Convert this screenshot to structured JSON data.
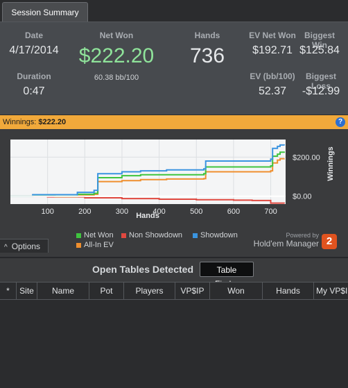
{
  "tab": {
    "label": "Session Summary"
  },
  "summary": {
    "date_label": "Date",
    "date_value": "4/17/2014",
    "net_won_label": "Net Won",
    "net_won_value": "$222.20",
    "net_won_sub": "60.38 bb/100",
    "hands_label": "Hands",
    "hands_value": "736",
    "ev_net_won_label": "EV Net Won",
    "ev_net_won_value": "$192.71",
    "biggest_win_label": "Biggest Win",
    "biggest_win_value": "$125.84",
    "duration_label": "Duration",
    "duration_value": "0:47",
    "ev_bb_label": "EV (bb/100)",
    "ev_bb_value": "52.37",
    "biggest_loss_label": "Biggest Loss",
    "biggest_loss_value": "-$12.99"
  },
  "winnings_bar": {
    "label": "Winnings:",
    "value": "$222.20",
    "help": "?"
  },
  "chart_data": {
    "type": "line",
    "xlabel": "Hands",
    "ylabel": "Winnings",
    "xlim": [
      0,
      740
    ],
    "ylim": [
      -40,
      290
    ],
    "x_ticks": [
      100,
      200,
      300,
      400,
      500,
      600,
      700
    ],
    "y_ticks": [
      {
        "value": 200,
        "label": "$200.00"
      },
      {
        "value": 0,
        "label": "$0.00"
      }
    ],
    "series": [
      {
        "name": "Net Won",
        "color": "#3fc43f",
        "x": [
          0,
          60,
          120,
          180,
          225,
          235,
          300,
          350,
          420,
          520,
          525,
          600,
          700,
          705,
          718,
          725,
          736
        ],
        "y": [
          0,
          5,
          0,
          10,
          15,
          95,
          105,
          110,
          110,
          115,
          150,
          150,
          155,
          205,
          215,
          225,
          222
        ]
      },
      {
        "name": "Non Showdown",
        "color": "#e0483f",
        "x": [
          0,
          100,
          200,
          300,
          400,
          500,
          600,
          650,
          700,
          736
        ],
        "y": [
          0,
          -3,
          -8,
          -12,
          -15,
          -18,
          -20,
          -22,
          -35,
          -38
        ]
      },
      {
        "name": "Showdown",
        "color": "#3a94e0",
        "x": [
          0,
          60,
          120,
          180,
          225,
          235,
          300,
          350,
          420,
          520,
          525,
          600,
          700,
          705,
          718,
          725,
          736
        ],
        "y": [
          0,
          8,
          8,
          20,
          30,
          115,
          125,
          130,
          135,
          140,
          180,
          180,
          190,
          245,
          255,
          262,
          260
        ]
      },
      {
        "name": "All-In EV",
        "color": "#ef8f2e",
        "x": [
          0,
          60,
          120,
          180,
          225,
          235,
          300,
          350,
          420,
          520,
          525,
          600,
          700,
          705,
          718,
          725,
          736
        ],
        "y": [
          0,
          3,
          -2,
          5,
          10,
          75,
          80,
          85,
          88,
          90,
          125,
          125,
          130,
          170,
          185,
          192,
          193
        ]
      }
    ],
    "baseline": {
      "y": 0,
      "color": "#ffffff"
    }
  },
  "options": {
    "label": "Options",
    "arrow": "^"
  },
  "branding": {
    "powered_by": "Powered by",
    "name": "Hold'em Manager",
    "logo_digit": "2",
    "logo_color": "#e0531f"
  },
  "open_tables": {
    "title": "Open Tables Detected",
    "finder_button": "Table Finder",
    "columns": [
      "*",
      "Site",
      "Name",
      "Pot",
      "Players",
      "VP$IP",
      "Won",
      "Hands",
      "My VP$IP"
    ]
  }
}
